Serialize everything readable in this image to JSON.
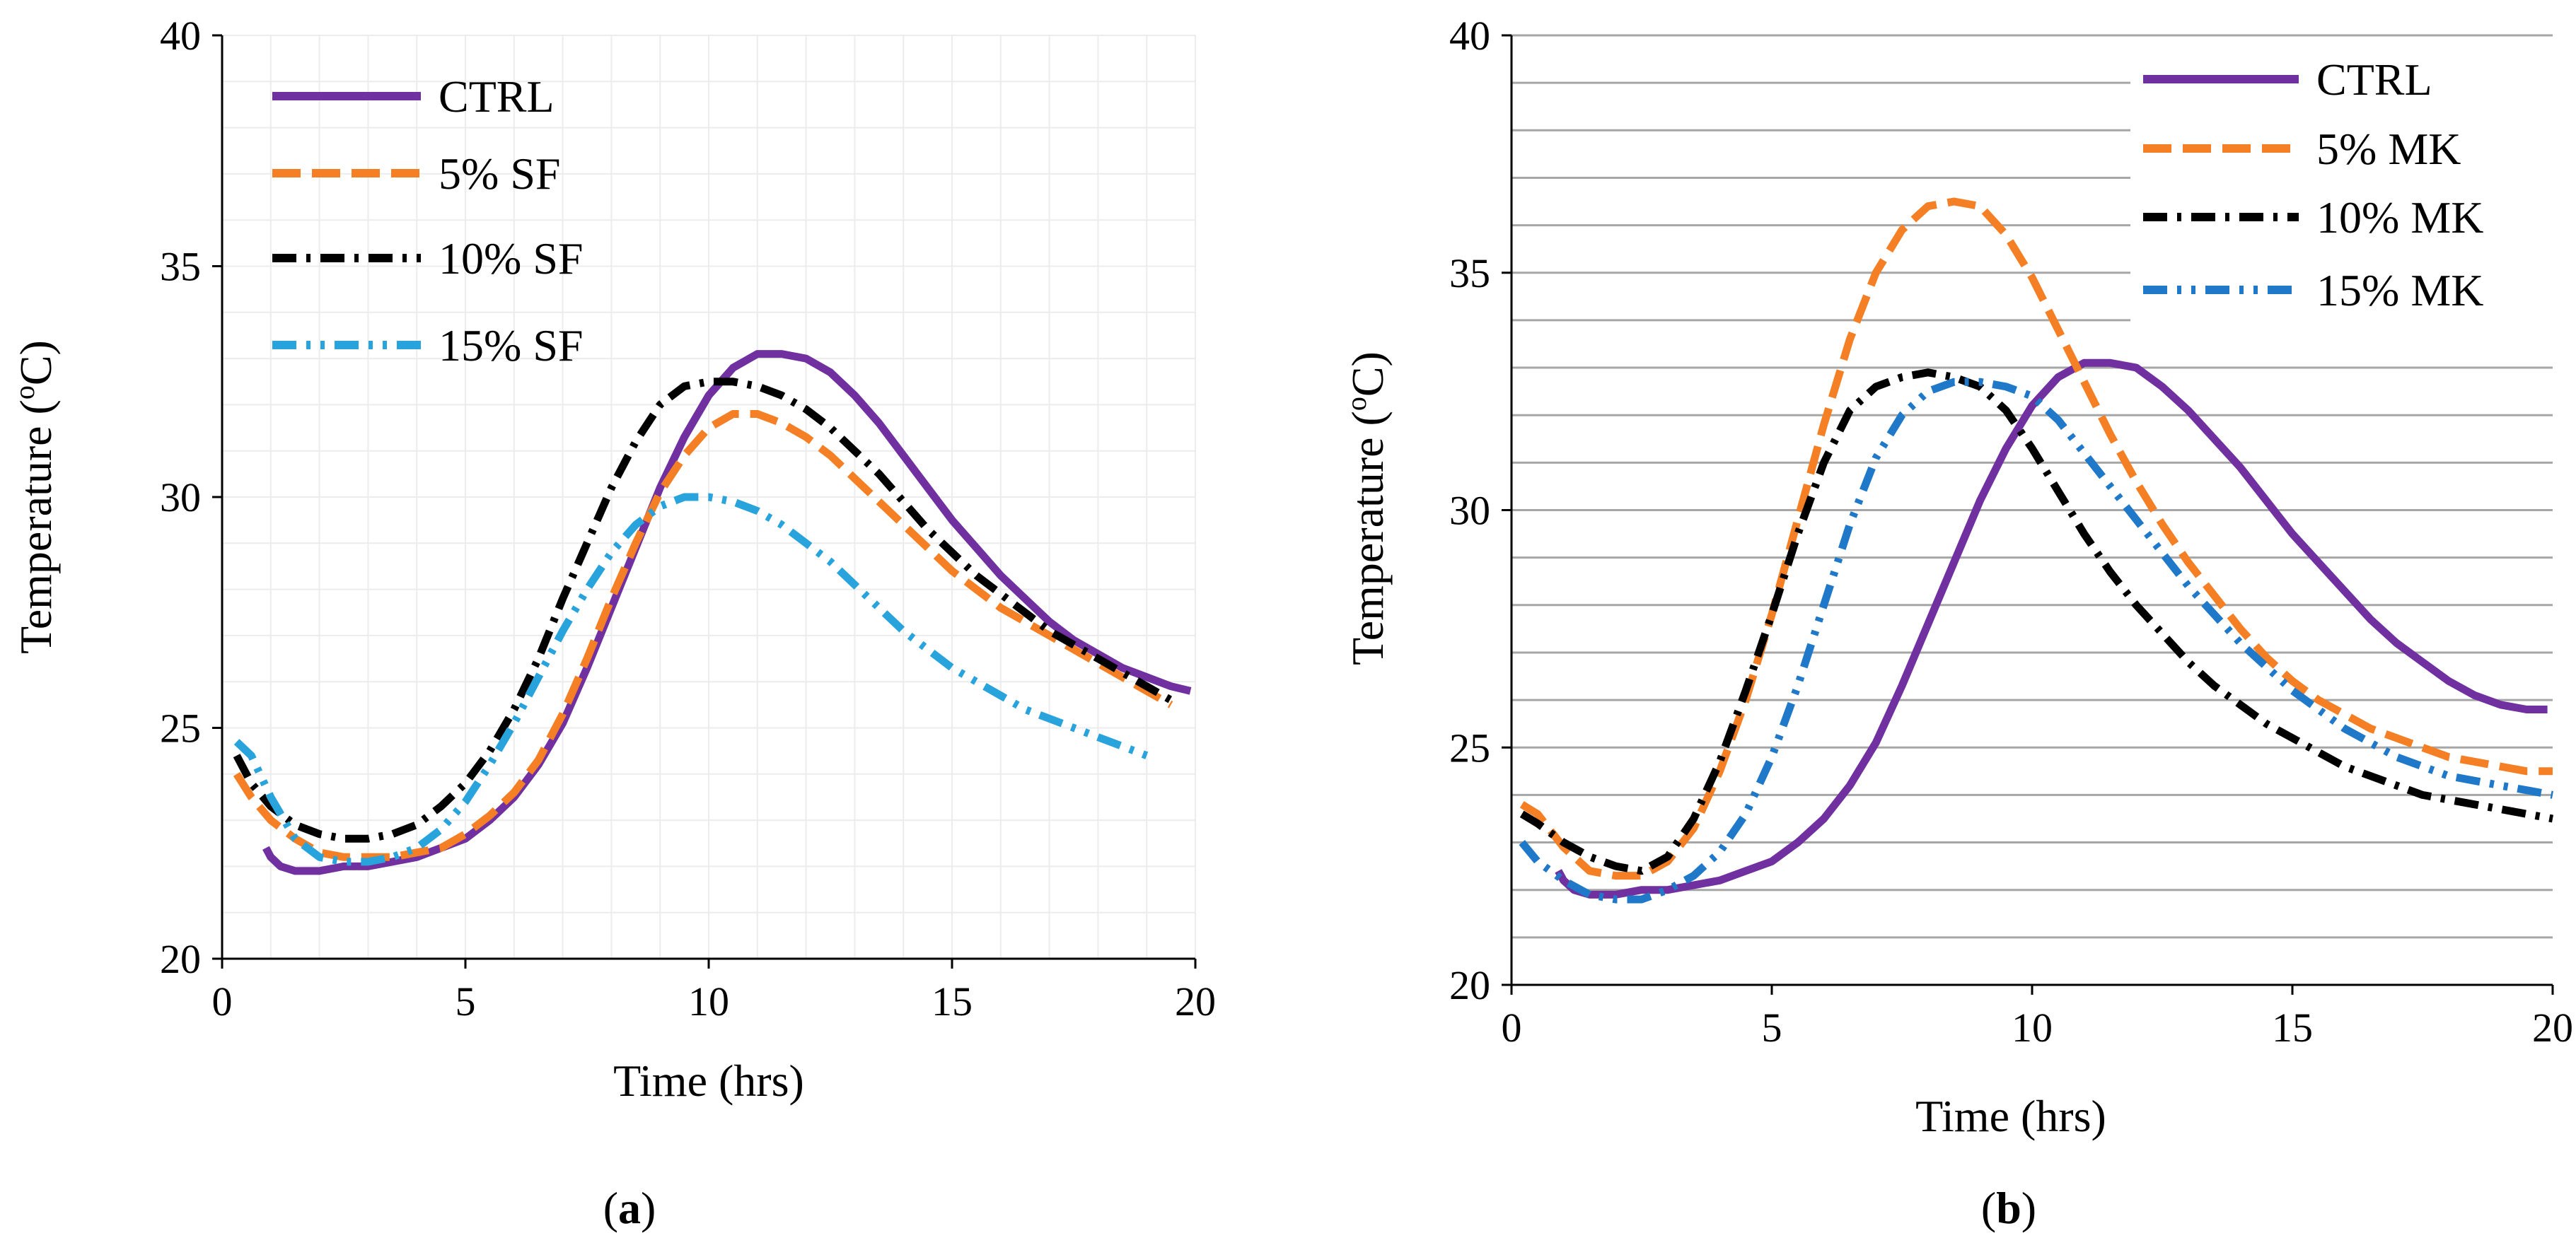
{
  "chart_data": [
    {
      "type": "line",
      "panel_label_prefix": "(",
      "panel_label": "a",
      "panel_label_suffix": ")",
      "xlabel": "Time (hrs)",
      "ylabel": "Temperature (",
      "ylabel_sup": "o",
      "ylabel_tail": "C)",
      "xlim": [
        0,
        20
      ],
      "ylim": [
        20,
        40
      ],
      "xticks": [
        "0",
        "5",
        "10",
        "15",
        "20"
      ],
      "yticks": [
        "20",
        "25",
        "30",
        "35",
        "40"
      ],
      "grid": "fine",
      "legend_position": "top-left",
      "series": [
        {
          "name": "CTRL",
          "color": "#7030A0",
          "dash": "solid",
          "x": [
            0.9,
            1.0,
            1.2,
            1.5,
            2.0,
            2.5,
            3.0,
            3.5,
            4.0,
            4.5,
            5.0,
            5.5,
            6.0,
            6.5,
            7.0,
            7.5,
            8.0,
            8.5,
            9.0,
            9.5,
            10.0,
            10.5,
            11.0,
            11.5,
            12.0,
            12.5,
            13.0,
            13.5,
            14.0,
            14.5,
            15.0,
            15.5,
            16.0,
            16.5,
            17.0,
            17.5,
            18.0,
            18.5,
            19.0,
            19.5,
            19.9
          ],
          "y": [
            22.4,
            22.2,
            22.0,
            21.9,
            21.9,
            22.0,
            22.0,
            22.1,
            22.2,
            22.4,
            22.6,
            23.0,
            23.5,
            24.2,
            25.1,
            26.3,
            27.6,
            28.9,
            30.2,
            31.3,
            32.2,
            32.8,
            33.1,
            33.1,
            33.0,
            32.7,
            32.2,
            31.6,
            30.9,
            30.2,
            29.5,
            28.9,
            28.3,
            27.8,
            27.3,
            26.9,
            26.6,
            26.3,
            26.1,
            25.9,
            25.8
          ]
        },
        {
          "name": "5% SF",
          "color": "#F47F24",
          "dash": "dash",
          "x": [
            0.3,
            0.6,
            1.0,
            1.5,
            2.0,
            2.5,
            3.0,
            3.5,
            4.0,
            4.5,
            5.0,
            5.5,
            6.0,
            6.5,
            7.0,
            7.5,
            8.0,
            8.5,
            9.0,
            9.5,
            10.0,
            10.5,
            11.0,
            11.5,
            12.0,
            12.5,
            13.0,
            13.5,
            14.0,
            14.5,
            15.0,
            15.5,
            16.0,
            16.5,
            17.0,
            17.5,
            18.0,
            18.5,
            19.0,
            19.5
          ],
          "y": [
            24.0,
            23.5,
            23.0,
            22.6,
            22.3,
            22.2,
            22.2,
            22.2,
            22.3,
            22.4,
            22.7,
            23.1,
            23.6,
            24.3,
            25.3,
            26.5,
            27.8,
            29.0,
            30.1,
            30.9,
            31.5,
            31.8,
            31.8,
            31.6,
            31.3,
            30.9,
            30.4,
            29.9,
            29.4,
            28.9,
            28.4,
            28.0,
            27.6,
            27.3,
            27.0,
            26.7,
            26.4,
            26.1,
            25.8,
            25.5
          ]
        },
        {
          "name": "10% SF",
          "color": "#000000",
          "dash": "dashdot",
          "x": [
            0.3,
            0.6,
            1.0,
            1.5,
            2.0,
            2.5,
            3.0,
            3.5,
            4.0,
            4.5,
            5.0,
            5.5,
            6.0,
            6.5,
            7.0,
            7.5,
            8.0,
            8.5,
            9.0,
            9.5,
            10.0,
            10.5,
            11.0,
            11.5,
            12.0,
            12.5,
            13.0,
            13.5,
            14.0,
            14.5,
            15.0,
            15.5,
            16.0,
            16.5,
            17.0,
            17.5,
            18.0,
            18.5,
            19.0,
            19.5
          ],
          "y": [
            24.4,
            23.8,
            23.3,
            22.9,
            22.7,
            22.6,
            22.6,
            22.7,
            22.9,
            23.3,
            23.8,
            24.5,
            25.4,
            26.5,
            27.8,
            29.0,
            30.2,
            31.2,
            32.0,
            32.4,
            32.5,
            32.5,
            32.4,
            32.2,
            31.9,
            31.5,
            31.0,
            30.5,
            29.9,
            29.3,
            28.8,
            28.3,
            27.9,
            27.5,
            27.1,
            26.8,
            26.5,
            26.2,
            25.9,
            25.6
          ]
        },
        {
          "name": "15% SF",
          "color": "#29A3DC",
          "dash": "dashdotdot",
          "x": [
            0.3,
            0.6,
            1.0,
            1.5,
            2.0,
            2.5,
            3.0,
            3.5,
            4.0,
            4.5,
            5.0,
            5.5,
            6.0,
            6.5,
            7.0,
            7.5,
            8.0,
            8.5,
            9.0,
            9.5,
            10.0,
            10.5,
            11.0,
            11.5,
            12.0,
            12.5,
            13.0,
            13.5,
            14.0,
            14.5,
            15.0,
            15.5,
            16.0,
            16.5,
            17.0,
            17.5,
            18.0,
            18.5,
            19.0
          ],
          "y": [
            24.7,
            24.4,
            23.5,
            22.6,
            22.2,
            22.1,
            22.1,
            22.2,
            22.4,
            22.8,
            23.4,
            24.2,
            25.1,
            26.1,
            27.1,
            28.0,
            28.8,
            29.4,
            29.8,
            30.0,
            30.0,
            29.9,
            29.7,
            29.4,
            29.0,
            28.6,
            28.1,
            27.6,
            27.1,
            26.7,
            26.3,
            26.0,
            25.7,
            25.4,
            25.2,
            25.0,
            24.8,
            24.6,
            24.4
          ]
        }
      ],
      "legend": [
        {
          "label": "CTRL"
        },
        {
          "label": "5% SF"
        },
        {
          "label": "10% SF"
        },
        {
          "label": "15% SF"
        }
      ]
    },
    {
      "type": "line",
      "panel_label_prefix": "(",
      "panel_label": "b",
      "panel_label_suffix": ")",
      "xlabel": "Time (hrs)",
      "ylabel": "Temperature (",
      "ylabel_sup": "o",
      "ylabel_tail": "C)",
      "xlim": [
        0,
        20
      ],
      "ylim": [
        20,
        40
      ],
      "xticks": [
        "0",
        "5",
        "10",
        "15",
        "20"
      ],
      "yticks": [
        "20",
        "25",
        "30",
        "35",
        "40"
      ],
      "grid": "horizontal",
      "legend_position": "top-right",
      "series": [
        {
          "name": "CTRL",
          "color": "#7030A0",
          "dash": "solid",
          "x": [
            0.9,
            1.0,
            1.2,
            1.5,
            2.0,
            2.5,
            3.0,
            3.5,
            4.0,
            4.5,
            5.0,
            5.5,
            6.0,
            6.5,
            7.0,
            7.5,
            8.0,
            8.5,
            9.0,
            9.5,
            10.0,
            10.5,
            11.0,
            11.5,
            12.0,
            12.5,
            13.0,
            13.5,
            14.0,
            14.5,
            15.0,
            15.5,
            16.0,
            16.5,
            17.0,
            17.5,
            18.0,
            18.5,
            19.0,
            19.5,
            19.9
          ],
          "y": [
            22.4,
            22.2,
            22.0,
            21.9,
            21.9,
            22.0,
            22.0,
            22.1,
            22.2,
            22.4,
            22.6,
            23.0,
            23.5,
            24.2,
            25.1,
            26.3,
            27.6,
            28.9,
            30.2,
            31.3,
            32.2,
            32.8,
            33.1,
            33.1,
            33.0,
            32.6,
            32.1,
            31.5,
            30.9,
            30.2,
            29.5,
            28.9,
            28.3,
            27.7,
            27.2,
            26.8,
            26.4,
            26.1,
            25.9,
            25.8,
            25.8
          ]
        },
        {
          "name": "5% MK",
          "color": "#F47F24",
          "dash": "dash",
          "x": [
            0.2,
            0.5,
            1.0,
            1.5,
            2.0,
            2.5,
            3.0,
            3.5,
            4.0,
            4.5,
            5.0,
            5.5,
            6.0,
            6.5,
            7.0,
            7.5,
            8.0,
            8.5,
            9.0,
            9.5,
            10.0,
            10.5,
            11.0,
            11.5,
            12.0,
            12.5,
            13.0,
            13.5,
            14.0,
            14.5,
            15.0,
            15.5,
            16.0,
            16.5,
            17.0,
            17.5,
            18.0,
            18.5,
            19.0,
            19.5,
            20.0
          ],
          "y": [
            23.8,
            23.6,
            22.9,
            22.4,
            22.3,
            22.3,
            22.6,
            23.3,
            24.5,
            26.0,
            27.8,
            29.8,
            31.8,
            33.6,
            35.0,
            35.9,
            36.4,
            36.5,
            36.4,
            35.8,
            34.9,
            33.8,
            32.7,
            31.6,
            30.6,
            29.7,
            28.9,
            28.2,
            27.5,
            26.9,
            26.4,
            26.0,
            25.7,
            25.4,
            25.2,
            25.0,
            24.8,
            24.7,
            24.6,
            24.5,
            24.5
          ]
        },
        {
          "name": "10% MK",
          "color": "#000000",
          "dash": "dashdot",
          "x": [
            0.2,
            0.5,
            1.0,
            1.5,
            2.0,
            2.5,
            3.0,
            3.5,
            4.0,
            4.5,
            5.0,
            5.5,
            6.0,
            6.5,
            7.0,
            7.5,
            8.0,
            8.5,
            9.0,
            9.5,
            10.0,
            10.5,
            11.0,
            11.5,
            12.0,
            12.5,
            13.0,
            13.5,
            14.0,
            14.5,
            15.0,
            15.5,
            16.0,
            16.5,
            17.0,
            17.5,
            18.0,
            18.5,
            19.0,
            19.5,
            20.0
          ],
          "y": [
            23.6,
            23.4,
            23.0,
            22.7,
            22.5,
            22.4,
            22.7,
            23.5,
            24.7,
            26.2,
            27.8,
            29.5,
            31.0,
            32.1,
            32.6,
            32.8,
            32.9,
            32.8,
            32.6,
            32.1,
            31.3,
            30.4,
            29.5,
            28.7,
            28.0,
            27.4,
            26.8,
            26.3,
            25.9,
            25.5,
            25.2,
            24.9,
            24.6,
            24.4,
            24.2,
            24.0,
            23.9,
            23.8,
            23.7,
            23.6,
            23.5
          ]
        },
        {
          "name": "15% MK",
          "color": "#1F78C8",
          "dash": "dashdotdot",
          "x": [
            0.2,
            0.5,
            1.0,
            1.5,
            2.0,
            2.5,
            3.0,
            3.5,
            4.0,
            4.5,
            5.0,
            5.5,
            6.0,
            6.5,
            7.0,
            7.5,
            8.0,
            8.5,
            9.0,
            9.5,
            10.0,
            10.5,
            11.0,
            11.5,
            12.0,
            12.5,
            13.0,
            13.5,
            14.0,
            14.5,
            15.0,
            15.5,
            16.0,
            16.5,
            17.0,
            17.5,
            18.0,
            18.5,
            19.0,
            19.5,
            20.0
          ],
          "y": [
            23.0,
            22.6,
            22.2,
            21.9,
            21.8,
            21.8,
            22.0,
            22.3,
            22.8,
            23.6,
            24.8,
            26.3,
            28.0,
            29.7,
            31.1,
            32.0,
            32.5,
            32.7,
            32.7,
            32.6,
            32.4,
            31.9,
            31.2,
            30.5,
            29.8,
            29.1,
            28.4,
            27.8,
            27.2,
            26.7,
            26.2,
            25.8,
            25.4,
            25.1,
            24.8,
            24.6,
            24.4,
            24.3,
            24.2,
            24.1,
            24.0
          ]
        }
      ],
      "legend": [
        {
          "label": "CTRL"
        },
        {
          "label": "5% MK"
        },
        {
          "label": "10% MK"
        },
        {
          "label": "15% MK"
        }
      ]
    }
  ]
}
